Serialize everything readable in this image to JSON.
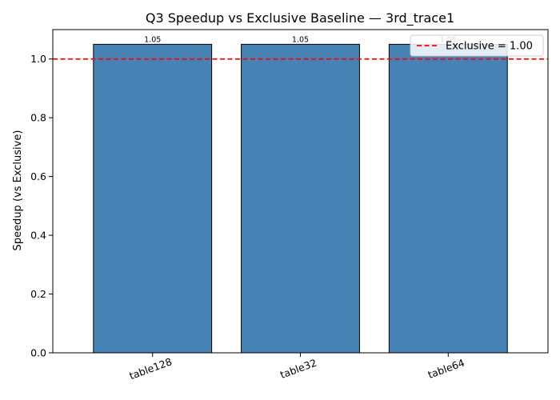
{
  "chart_data": {
    "type": "bar",
    "title": "Q3 Speedup vs Exclusive Baseline — 3rd_trace1",
    "xlabel": "",
    "ylabel": "Speedup (vs Exclusive)",
    "categories": [
      "table128",
      "table32",
      "table64"
    ],
    "values": [
      1.05,
      1.05,
      1.05
    ],
    "data_labels": [
      "1.05",
      "1.05",
      "1.05"
    ],
    "ylim": [
      0,
      1.1
    ],
    "yticks": [
      0.0,
      0.2,
      0.4,
      0.6,
      0.8,
      1.0
    ],
    "ytick_labels": [
      "0.0",
      "0.2",
      "0.4",
      "0.6",
      "0.8",
      "1.0"
    ],
    "bar_color": "#4682b4",
    "bar_edge_color": "#000000",
    "reference_line": {
      "value": 1.0,
      "color": "#ff0000",
      "style": "dashed",
      "label": "Exclusive = 1.00"
    },
    "legend": {
      "location": "upper right",
      "entries": [
        "Exclusive = 1.00"
      ]
    },
    "grid": false
  }
}
